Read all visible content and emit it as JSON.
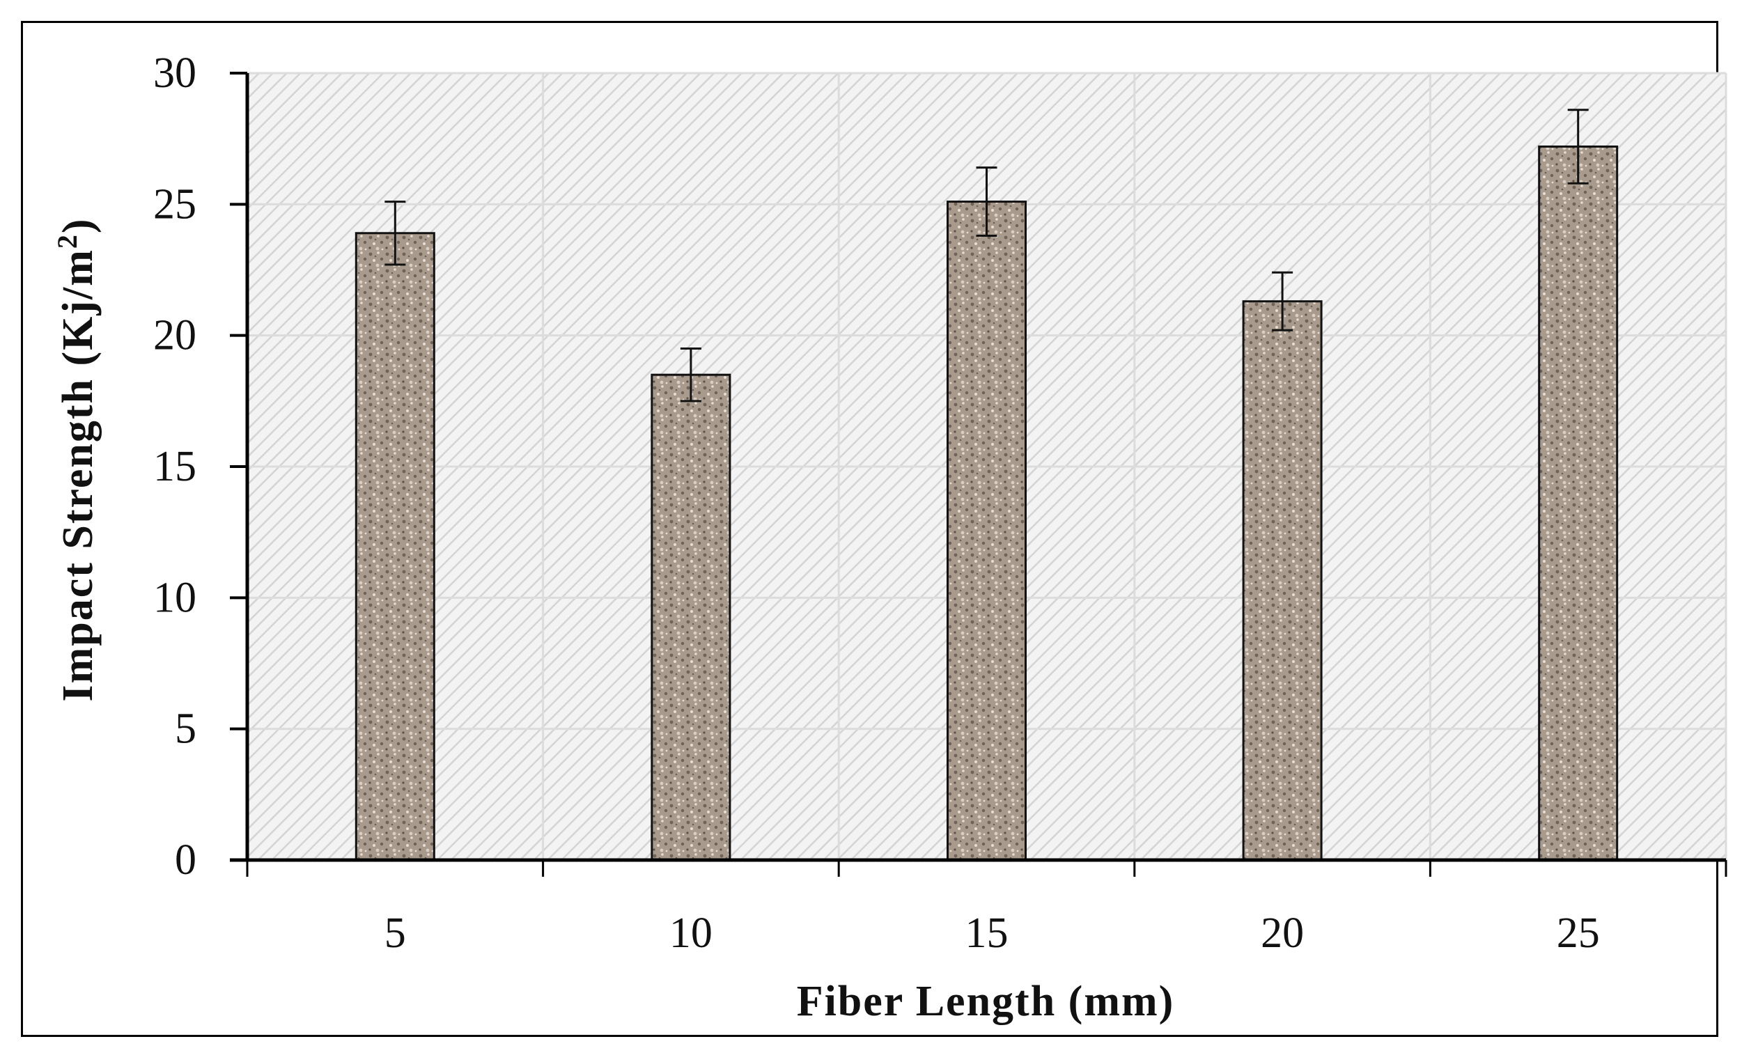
{
  "chart_data": {
    "type": "bar",
    "title": "",
    "xlabel": "Fiber Length (mm)",
    "ylabel_main": "Impact Strength (Kj/m",
    "ylabel_sup": "2",
    "ylabel_close": ")",
    "categories": [
      "5",
      "10",
      "15",
      "20",
      "25"
    ],
    "values": [
      23.9,
      18.5,
      25.1,
      21.3,
      27.2
    ],
    "errors": [
      1.2,
      1.0,
      1.3,
      1.1,
      1.4
    ],
    "ylim": [
      0,
      30
    ],
    "yticks": [
      "0",
      "5",
      "10",
      "15",
      "20",
      "25",
      "30"
    ],
    "grid": true,
    "legend": "none"
  },
  "colors": {
    "bar_fill": "#a89a8c",
    "bar_speck_dark": "#6e6156",
    "bar_speck_light": "#e6ded4",
    "plot_bg": "#f3f3f3",
    "hatch": "#d4d4d4",
    "grid": "#dcdcdc",
    "axis": "#000000"
  }
}
